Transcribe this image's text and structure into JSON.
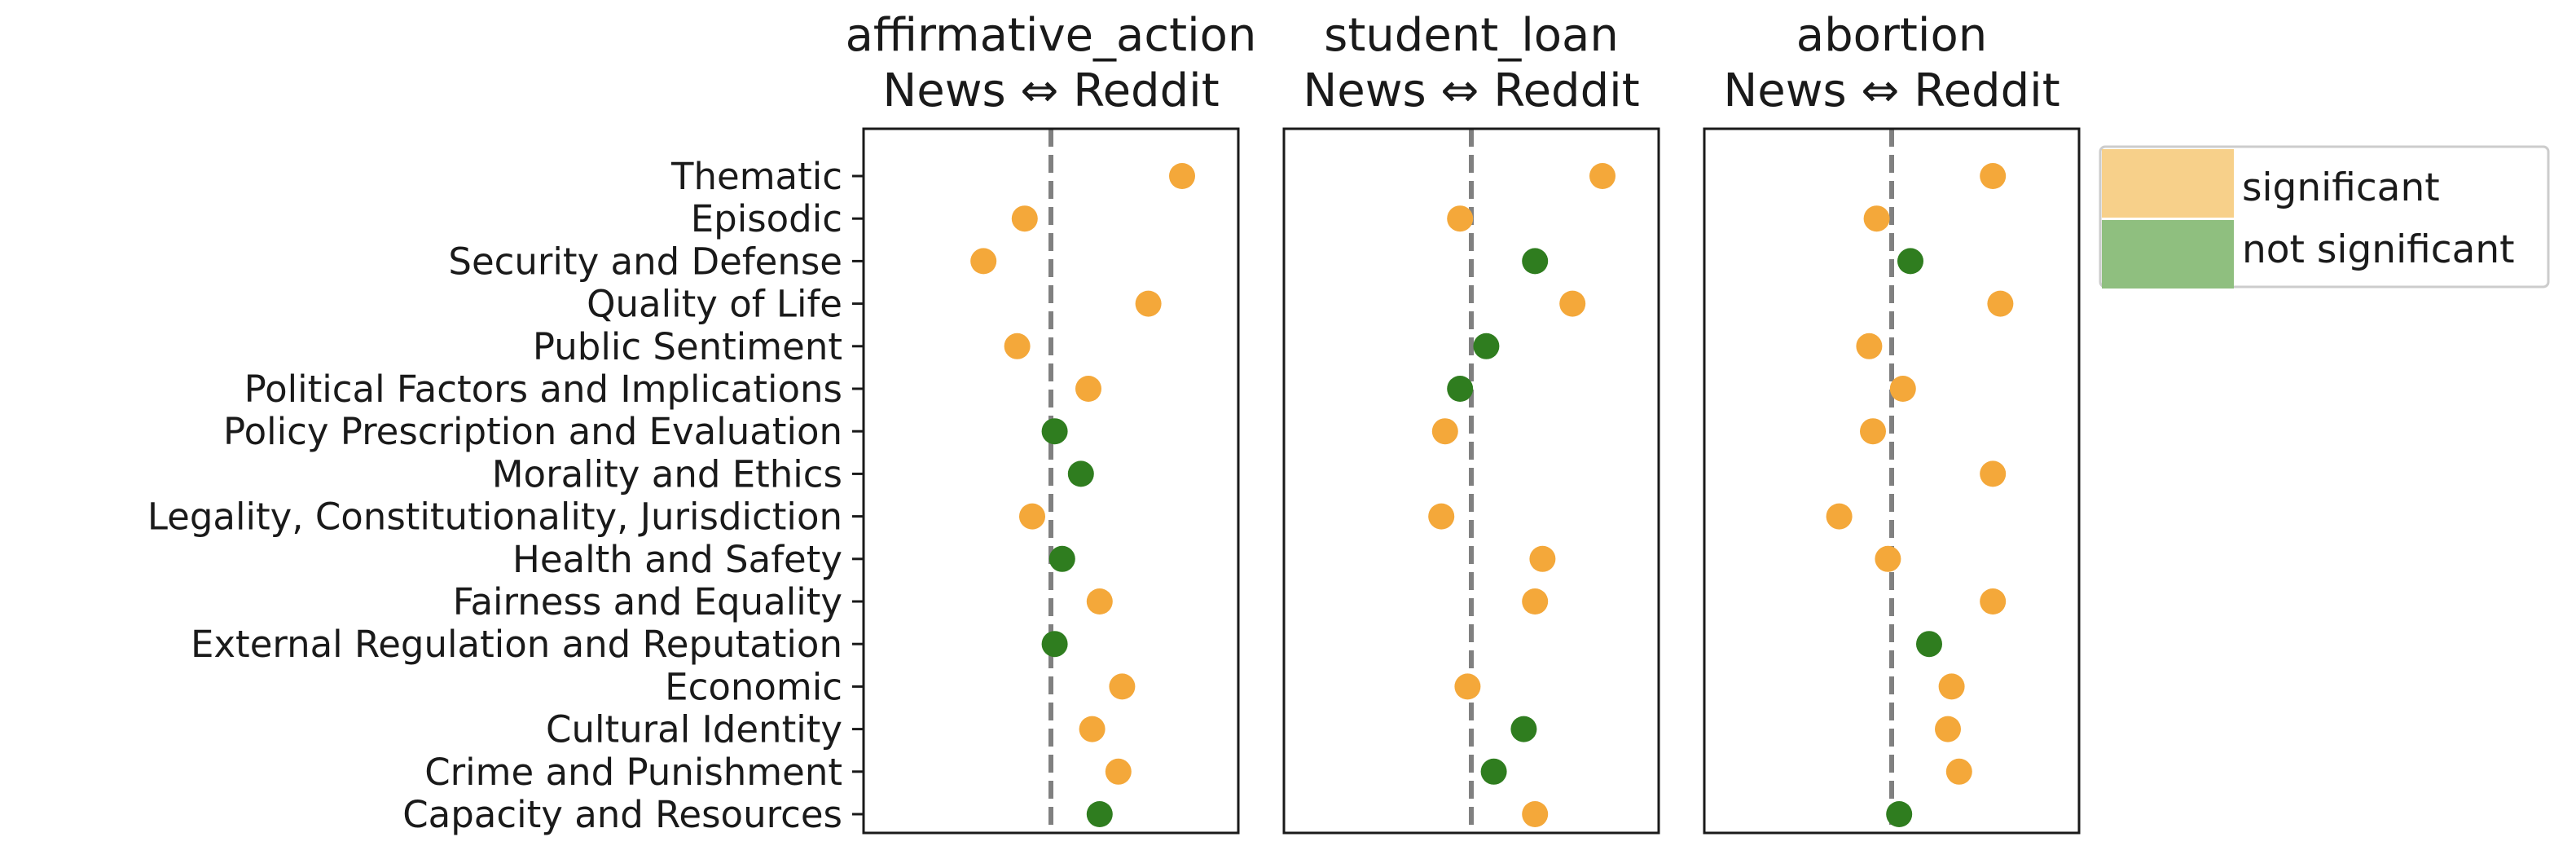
{
  "colors": {
    "significant": "#f4a83a",
    "not_significant": "#2f7d1f",
    "reference_line": "#808080",
    "legend_significant_patch": "#f7d08a",
    "legend_not_significant_patch": "#8fbf7f"
  },
  "legend": {
    "placement": "right",
    "items": [
      {
        "key": "significant",
        "label": "significant"
      },
      {
        "key": "not_significant",
        "label": "not significant"
      }
    ]
  },
  "chart_data": [
    {
      "type": "scatter",
      "title": "affirmative_action",
      "subtitle": "News ⇔ Reddit",
      "categories": [
        "Thematic",
        "Episodic",
        "Security and Defense",
        "Quality of Life",
        "Public Sentiment",
        "Political Factors and Implications",
        "Policy Prescription and Evaluation",
        "Morality and Ethics",
        "Legality, Constitutionality, Jurisdiction",
        "Health and Safety",
        "Fairness and Equality",
        "External Regulation and Reputation",
        "Economic",
        "Cultural Identity",
        "Crime and Punishment",
        "Capacity and Resources"
      ],
      "values": [
        0.35,
        -0.07,
        -0.18,
        0.26,
        -0.09,
        0.1,
        0.01,
        0.08,
        -0.05,
        0.03,
        0.13,
        0.01,
        0.19,
        0.11,
        0.18,
        0.13
      ],
      "significant": [
        true,
        true,
        true,
        true,
        true,
        true,
        false,
        false,
        true,
        false,
        true,
        false,
        true,
        true,
        true,
        false
      ],
      "xlim": [
        -0.5,
        0.5
      ],
      "reference_x": 0,
      "grid": false
    },
    {
      "type": "scatter",
      "title": "student_loan",
      "subtitle": "News ⇔ Reddit",
      "categories": [
        "Thematic",
        "Episodic",
        "Security and Defense",
        "Quality of Life",
        "Public Sentiment",
        "Political Factors and Implications",
        "Policy Prescription and Evaluation",
        "Morality and Ethics",
        "Legality, Constitutionality, Jurisdiction",
        "Health and Safety",
        "Fairness and Equality",
        "External Regulation and Reputation",
        "Economic",
        "Cultural Identity",
        "Crime and Punishment",
        "Capacity and Resources"
      ],
      "values": [
        0.35,
        -0.03,
        0.17,
        0.27,
        0.04,
        -0.03,
        -0.07,
        null,
        -0.08,
        0.19,
        0.17,
        null,
        -0.01,
        0.14,
        0.06,
        0.17
      ],
      "significant": [
        true,
        true,
        false,
        true,
        false,
        false,
        true,
        null,
        true,
        true,
        true,
        null,
        true,
        false,
        false,
        true
      ],
      "xlim": [
        -0.5,
        0.5
      ],
      "reference_x": 0,
      "grid": false
    },
    {
      "type": "scatter",
      "title": "abortion",
      "subtitle": "News ⇔ Reddit",
      "categories": [
        "Thematic",
        "Episodic",
        "Security and Defense",
        "Quality of Life",
        "Public Sentiment",
        "Political Factors and Implications",
        "Policy Prescription and Evaluation",
        "Morality and Ethics",
        "Legality, Constitutionality, Jurisdiction",
        "Health and Safety",
        "Fairness and Equality",
        "External Regulation and Reputation",
        "Economic",
        "Cultural Identity",
        "Crime and Punishment",
        "Capacity and Resources"
      ],
      "values": [
        0.27,
        -0.04,
        0.05,
        0.29,
        -0.06,
        0.03,
        -0.05,
        0.27,
        -0.14,
        -0.01,
        0.27,
        0.1,
        0.16,
        0.15,
        0.18,
        0.02
      ],
      "significant": [
        true,
        true,
        false,
        true,
        true,
        true,
        true,
        true,
        true,
        true,
        true,
        false,
        true,
        true,
        true,
        false
      ],
      "xlim": [
        -0.5,
        0.5
      ],
      "reference_x": 0,
      "grid": false
    }
  ]
}
